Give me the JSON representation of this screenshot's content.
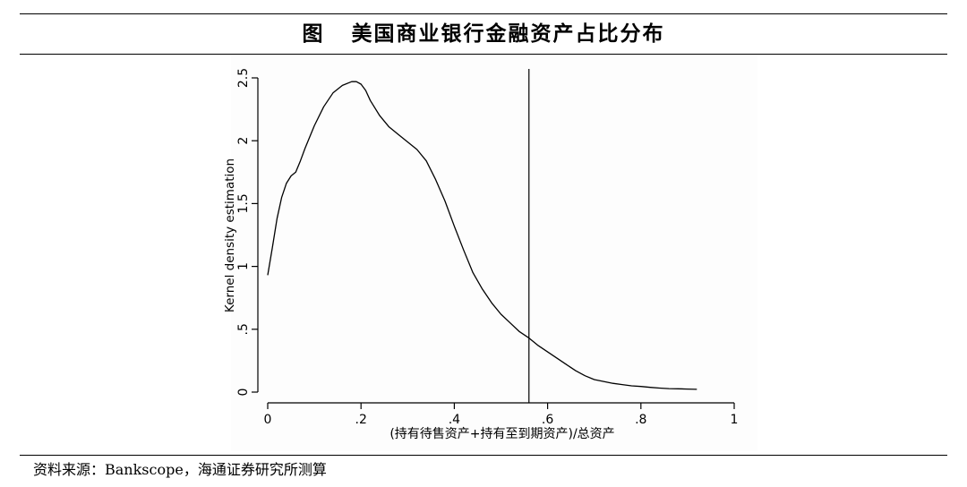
{
  "figure": {
    "label": "图",
    "title": "美国商业银行金融资产占比分布"
  },
  "source_text": "资料来源：Bankscope，海通证券研究所测算",
  "chart_data": {
    "type": "line",
    "title": "",
    "xlabel": "(持有待售资产+持有至到期资产)/总资产",
    "ylabel": "Kernel density estimation",
    "xlim": [
      0,
      1
    ],
    "ylim": [
      0,
      2.5
    ],
    "x_ticks": [
      0,
      0.2,
      0.4,
      0.6,
      0.8,
      1
    ],
    "x_tick_labels": [
      "0",
      ".2",
      ".4",
      ".6",
      ".8",
      "1"
    ],
    "y_ticks": [
      0,
      0.5,
      1,
      1.5,
      2,
      2.5
    ],
    "y_tick_labels": [
      "0",
      ".5",
      "1",
      "1.5",
      "2",
      "2.5"
    ],
    "grid": false,
    "reference_line_x": 0.56,
    "series": [
      {
        "x": [
          0.0,
          0.01,
          0.02,
          0.03,
          0.04,
          0.05,
          0.06,
          0.07,
          0.08,
          0.1,
          0.12,
          0.14,
          0.16,
          0.18,
          0.19,
          0.2,
          0.21,
          0.22,
          0.24,
          0.26,
          0.28,
          0.3,
          0.32,
          0.34,
          0.36,
          0.38,
          0.4,
          0.42,
          0.44,
          0.46,
          0.48,
          0.5,
          0.52,
          0.54,
          0.56,
          0.58,
          0.6,
          0.62,
          0.64,
          0.66,
          0.68,
          0.7,
          0.72,
          0.74,
          0.76,
          0.78,
          0.8,
          0.82,
          0.84,
          0.86,
          0.88,
          0.9,
          0.92
        ],
        "values": [
          0.93,
          1.15,
          1.38,
          1.55,
          1.66,
          1.72,
          1.75,
          1.84,
          1.94,
          2.12,
          2.27,
          2.38,
          2.44,
          2.47,
          2.47,
          2.45,
          2.4,
          2.32,
          2.2,
          2.11,
          2.05,
          1.99,
          1.93,
          1.84,
          1.69,
          1.52,
          1.32,
          1.13,
          0.95,
          0.82,
          0.71,
          0.62,
          0.55,
          0.48,
          0.43,
          0.37,
          0.32,
          0.27,
          0.22,
          0.17,
          0.13,
          0.1,
          0.085,
          0.07,
          0.06,
          0.05,
          0.045,
          0.038,
          0.032,
          0.028,
          0.026,
          0.024,
          0.022
        ]
      }
    ]
  }
}
